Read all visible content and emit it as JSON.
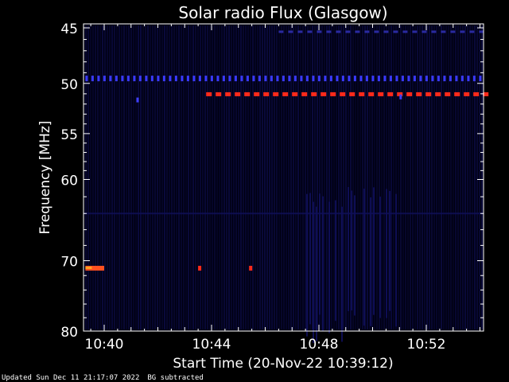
{
  "chart_data": {
    "type": "heatmap",
    "title": "Solar radio Flux (Glasgow)",
    "xlabel": "Start Time (20-Nov-22 10:39:12)",
    "ylabel": "Frequency [MHz]",
    "x_range_minutes": [
      "10:39:12",
      "10:54:12"
    ],
    "x_ticks": [
      "10:40",
      "10:44",
      "10:48",
      "10:52"
    ],
    "x_tick_minutes": [
      40,
      44,
      48,
      52
    ],
    "y_ticks": [
      45,
      50,
      55,
      60,
      70,
      80
    ],
    "y_range_mhz": [
      45,
      80
    ],
    "y_scale": "log",
    "colormap": [
      "#000000",
      "#10105a",
      "#2a2aff",
      "#ff2020",
      "#ffa020"
    ],
    "features": [
      {
        "name": "persistent line 49.5 MHz",
        "freq_mhz": 49.5,
        "start_min": 39.3,
        "end_min": 54.2,
        "level": "blue"
      },
      {
        "name": "persistent line 45.3 MHz",
        "freq_mhz": 45.3,
        "start_min": 46.5,
        "end_min": 54.2,
        "level": "dark-blue"
      },
      {
        "name": "interference 51 MHz",
        "freq_mhz": 51.0,
        "start_min": 43.8,
        "end_min": 54.2,
        "level": "red"
      },
      {
        "name": "burst 71 MHz",
        "freq_mhz": 71.0,
        "start_min": 39.3,
        "end_min": 40.0,
        "level": "red-orange"
      },
      {
        "name": "spike 71 MHz a",
        "freq_mhz": 71.0,
        "start_min": 43.5,
        "end_min": 43.6,
        "level": "red"
      },
      {
        "name": "spike 71 MHz b",
        "freq_mhz": 71.0,
        "start_min": 45.4,
        "end_min": 45.5,
        "level": "red"
      }
    ]
  },
  "footer": {
    "updated": "Updated Sun Dec 11 21:17:07 2022",
    "note": "BG subtracted"
  }
}
